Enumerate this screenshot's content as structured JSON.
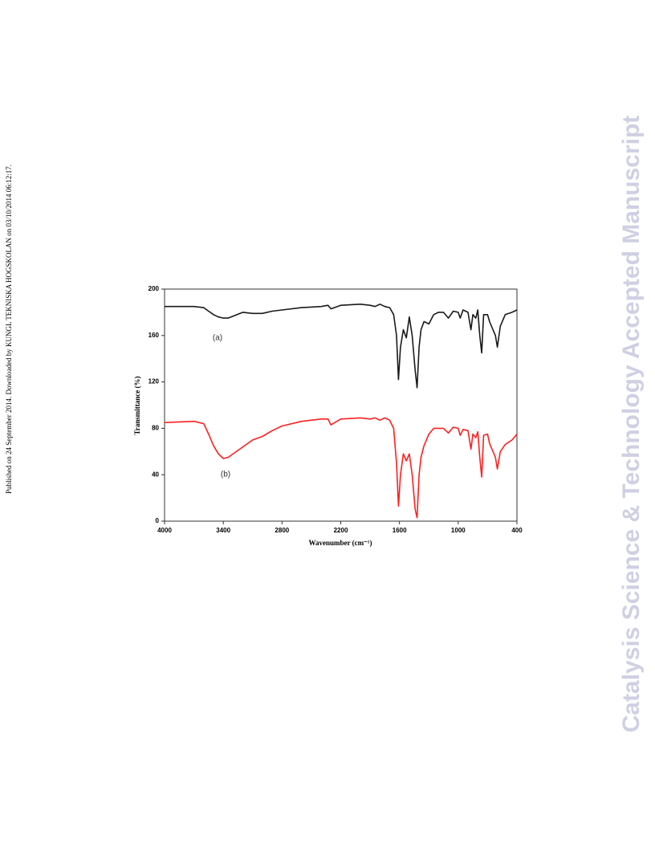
{
  "side_note": "Published on 24 September 2014. Downloaded by KUNGL TEKNISKA HOGSKOLAN on 03/10/2014 06:12:17.",
  "watermark": "Catalysis Science & Technology Accepted Manuscript",
  "chart_data": {
    "type": "line",
    "xlabel": "Wavenumber (cm⁻¹)",
    "ylabel": "Transmittance (%)",
    "x": [
      4000,
      3700,
      3600,
      3550,
      3500,
      3450,
      3400,
      3350,
      3200,
      3100,
      3000,
      2900,
      2800,
      2600,
      2400,
      2330,
      2300,
      2200,
      2000,
      1900,
      1850,
      1800,
      1750,
      1700,
      1660,
      1630,
      1610,
      1590,
      1560,
      1530,
      1500,
      1470,
      1440,
      1420,
      1400,
      1380,
      1350,
      1300,
      1250,
      1200,
      1150,
      1100,
      1050,
      1000,
      980,
      950,
      900,
      870,
      850,
      820,
      800,
      780,
      760,
      740,
      700,
      680,
      620,
      600,
      570,
      520,
      450,
      400
    ],
    "series": [
      {
        "name": "(a)",
        "color": "#1a1a1a",
        "values": [
          185,
          185,
          184,
          181,
          178,
          176,
          175,
          175,
          180,
          179,
          179,
          181,
          182,
          184,
          185,
          186,
          183,
          186,
          187,
          186,
          185,
          187,
          185,
          184,
          178,
          160,
          122,
          150,
          165,
          158,
          176,
          160,
          130,
          115,
          150,
          165,
          172,
          170,
          178,
          180,
          180,
          175,
          181,
          180,
          175,
          182,
          180,
          165,
          178,
          175,
          182,
          160,
          145,
          178,
          178,
          172,
          160,
          150,
          168,
          178,
          180,
          182
        ]
      },
      {
        "name": "(b)",
        "color": "#ff2020",
        "values": [
          85,
          86,
          84,
          75,
          65,
          58,
          54,
          55,
          64,
          70,
          73,
          78,
          82,
          86,
          88,
          88,
          83,
          88,
          89,
          88,
          89,
          87,
          89,
          87,
          80,
          50,
          13,
          40,
          58,
          52,
          58,
          40,
          10,
          3,
          40,
          55,
          65,
          75,
          80,
          80,
          80,
          76,
          81,
          80,
          74,
          79,
          78,
          62,
          75,
          72,
          77,
          55,
          38,
          74,
          75,
          67,
          55,
          45,
          60,
          66,
          70,
          75
        ]
      }
    ],
    "xlim": [
      4000,
      400
    ],
    "xticks": [
      4000,
      3400,
      2800,
      2200,
      1600,
      1000,
      400
    ],
    "ylim": [
      0,
      200
    ],
    "yticks": [
      0,
      40,
      80,
      120,
      160,
      200
    ]
  }
}
